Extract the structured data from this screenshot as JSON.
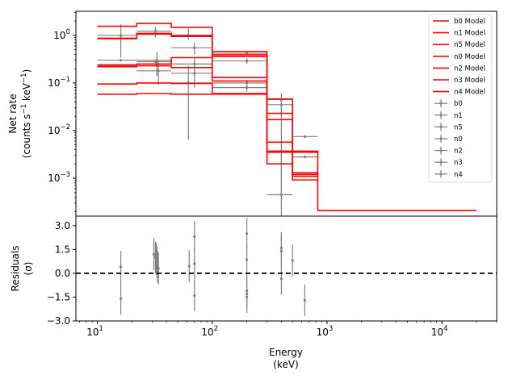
{
  "chart_data": [
    {
      "type": "step",
      "panel": "spectrum",
      "xscale": "log",
      "yscale": "log",
      "xlim": [
        6.5,
        30000
      ],
      "ylim": [
        0.00016,
        3.2
      ],
      "ylabel_line1": "Net rate",
      "ylabel_line2_pre": "(counts s",
      "ylabel_line2_exp1": "−1",
      "ylabel_line2_mid": " keV",
      "ylabel_line2_exp2": "−1",
      "ylabel_line2_post": ")",
      "y_ticks": [
        {
          "value": 1,
          "label_base": "10",
          "label_exp": "0"
        },
        {
          "value": 0.1,
          "label_base": "10",
          "label_exp": "−1"
        },
        {
          "value": 0.01,
          "label_base": "10",
          "label_exp": "−2"
        },
        {
          "value": 0.001,
          "label_base": "10",
          "label_exp": "−3"
        }
      ],
      "legend": {
        "placement": "upper-right",
        "model_entries": [
          "b0 Model",
          "n1 Model",
          "n5 Model",
          "n0 Model",
          "n2 Model",
          "n3 Model",
          "n4 Model"
        ],
        "data_entries": [
          "b0",
          "n1",
          "n5",
          "n0",
          "n2",
          "n3",
          "n4"
        ]
      },
      "model_color": "#ff0000",
      "data_color": "#808080",
      "model_lines": [
        {
          "name": "b0 Model",
          "bins": [
            [
              10,
              22,
              1.55
            ],
            [
              22,
              44,
              1.78
            ],
            [
              44,
              100,
              1.48
            ],
            [
              100,
              300,
              0.46
            ],
            [
              300,
              500,
              0.0037
            ],
            [
              500,
              830,
              0.0037
            ],
            [
              830,
              20000,
              0.00021
            ]
          ]
        },
        {
          "name": "n1 Model",
          "bins": [
            [
              10,
              22,
              0.87
            ],
            [
              22,
              44,
              1.1
            ],
            [
              44,
              100,
              0.99
            ],
            [
              100,
              300,
              0.39
            ],
            [
              300,
              500,
              0.046
            ],
            [
              500,
              830,
              0.0035
            ]
          ]
        },
        {
          "name": "n5 Model",
          "bins": [
            [
              10,
              22,
              0.85
            ],
            [
              22,
              44,
              1.06
            ],
            [
              44,
              100,
              0.95
            ],
            [
              100,
              300,
              0.36
            ],
            [
              300,
              500,
              0.023
            ],
            [
              500,
              830,
              0.0012
            ]
          ]
        },
        {
          "name": "n0 Model",
          "bins": [
            [
              10,
              22,
              0.24
            ],
            [
              22,
              44,
              0.25
            ],
            [
              44,
              100,
              0.34
            ],
            [
              100,
              300,
              0.13
            ],
            [
              300,
              500,
              0.017
            ],
            [
              500,
              830,
              0.0013
            ]
          ]
        },
        {
          "name": "n2 Model",
          "bins": [
            [
              10,
              22,
              0.22
            ],
            [
              22,
              44,
              0.23
            ],
            [
              44,
              100,
              0.21
            ],
            [
              100,
              300,
              0.11
            ],
            [
              300,
              500,
              0.0035
            ],
            [
              500,
              830,
              0.00092
            ]
          ]
        },
        {
          "name": "n3 Model",
          "bins": [
            [
              10,
              22,
              0.095
            ],
            [
              22,
              44,
              0.1
            ],
            [
              44,
              100,
              0.098
            ],
            [
              100,
              300,
              0.06
            ],
            [
              300,
              500,
              0.0057
            ],
            [
              500,
              830,
              0.0011
            ]
          ]
        },
        {
          "name": "n4 Model",
          "bins": [
            [
              10,
              22,
              0.058
            ],
            [
              22,
              44,
              0.06
            ],
            [
              44,
              100,
              0.058
            ],
            [
              100,
              300,
              0.058
            ],
            [
              300,
              500,
              0.002
            ]
          ]
        }
      ],
      "data_points": [
        {
          "x": 16,
          "xlo": 10,
          "xhi": 22,
          "y": 1.0,
          "ylo": 0.34,
          "yhi": 1.7
        },
        {
          "x": 16,
          "xlo": 10,
          "xhi": 22,
          "y": 0.3,
          "ylo": 0.3,
          "yhi": 0.3
        },
        {
          "x": 16,
          "xlo": 10,
          "xhi": 22,
          "y": 0.23,
          "ylo": 0.23,
          "yhi": 0.23
        },
        {
          "x": 32,
          "xlo": 22,
          "xhi": 44,
          "y": 1.22,
          "ylo": 0.9,
          "yhi": 1.5
        },
        {
          "x": 33,
          "xlo": 22,
          "xhi": 44,
          "y": 0.3,
          "ylo": 0.14,
          "yhi": 0.45
        },
        {
          "x": 33,
          "xlo": 22,
          "xhi": 44,
          "y": 0.25,
          "ylo": 0.14,
          "yhi": 0.35
        },
        {
          "x": 34,
          "xlo": 22,
          "xhi": 44,
          "y": 0.18,
          "ylo": 0.09,
          "yhi": 0.3
        },
        {
          "x": 32,
          "xlo": 22,
          "xhi": 44,
          "y": 0.28,
          "ylo": 0.28,
          "yhi": 0.28
        },
        {
          "x": 62,
          "xlo": 44,
          "xhi": 100,
          "y": 1.0,
          "ylo": 0.8,
          "yhi": 1.4
        },
        {
          "x": 70,
          "xlo": 44,
          "xhi": 100,
          "y": 0.55,
          "ylo": 0.4,
          "yhi": 0.7
        },
        {
          "x": 62,
          "xlo": 44,
          "xhi": 100,
          "y": 0.1,
          "ylo": 0.0065,
          "yhi": 0.23
        },
        {
          "x": 70,
          "xlo": 44,
          "xhi": 100,
          "y": 0.25,
          "ylo": 0.14,
          "yhi": 0.35
        },
        {
          "x": 70,
          "xlo": 44,
          "xhi": 100,
          "y": 0.16,
          "ylo": 0.08,
          "yhi": 0.22
        },
        {
          "x": 200,
          "xlo": 100,
          "xhi": 300,
          "y": 0.42,
          "ylo": 0.38,
          "yhi": 0.46
        },
        {
          "x": 200,
          "xlo": 100,
          "xhi": 300,
          "y": 0.29,
          "ylo": 0.25,
          "yhi": 0.33
        },
        {
          "x": 200,
          "xlo": 100,
          "xhi": 300,
          "y": 0.1,
          "ylo": 0.085,
          "yhi": 0.115
        },
        {
          "x": 200,
          "xlo": 100,
          "xhi": 300,
          "y": 0.08,
          "ylo": 0.065,
          "yhi": 0.09
        },
        {
          "x": 400,
          "xlo": 300,
          "xhi": 500,
          "y": 0.045,
          "ylo": 0.02,
          "yhi": 0.06
        },
        {
          "x": 400,
          "xlo": 300,
          "xhi": 500,
          "y": 0.035,
          "ylo": 0.00045,
          "yhi": 0.05
        },
        {
          "x": 400,
          "xlo": 300,
          "xhi": 500,
          "y": 0.00045,
          "ylo": 0.00016,
          "yhi": 0.004
        },
        {
          "x": 640,
          "xlo": 500,
          "xhi": 830,
          "y": 0.0075,
          "ylo": 0.0075,
          "yhi": 0.0075
        },
        {
          "x": 640,
          "xlo": 500,
          "xhi": 830,
          "y": 0.0028,
          "ylo": 0.0028,
          "yhi": 0.0028
        }
      ]
    },
    {
      "type": "scatter",
      "panel": "residuals",
      "xscale": "log",
      "xlim": [
        6.5,
        30000
      ],
      "ylim": [
        -3.0,
        3.6
      ],
      "xlabel_line1": "Energy",
      "xlabel_line2": "(keV)",
      "ylabel_line1": "Residuals",
      "ylabel_line2": "(σ)",
      "y_ticks": [
        {
          "value": 3.0,
          "label": "3.0"
        },
        {
          "value": 1.5,
          "label": "1.5"
        },
        {
          "value": 0.0,
          "label": "0.0"
        },
        {
          "value": -1.5,
          "label": "−1.5"
        },
        {
          "value": -3.0,
          "label": "−3.0"
        }
      ],
      "x_ticks": [
        {
          "value": 10,
          "label_base": "10",
          "label_exp": "1"
        },
        {
          "value": 100,
          "label_base": "10",
          "label_exp": "2"
        },
        {
          "value": 1000,
          "label_base": "10",
          "label_exp": "3"
        },
        {
          "value": 10000,
          "label_base": "10",
          "label_exp": "4"
        }
      ],
      "zero_line": {
        "y": 0,
        "style": "dashed"
      },
      "points": [
        {
          "x": 16,
          "y": 0.4,
          "err": 1.0
        },
        {
          "x": 16,
          "y": -1.6,
          "err": 1.0
        },
        {
          "x": 31,
          "y": 1.2,
          "err": 1.0
        },
        {
          "x": 32,
          "y": 1.0,
          "err": 1.0
        },
        {
          "x": 32.5,
          "y": 0.9,
          "err": 1.0
        },
        {
          "x": 33,
          "y": 0.7,
          "err": 1.0
        },
        {
          "x": 33.5,
          "y": 0.4,
          "err": 1.0
        },
        {
          "x": 34,
          "y": 0.3,
          "err": 1.0
        },
        {
          "x": 63,
          "y": 0.45,
          "err": 1.0
        },
        {
          "x": 70,
          "y": 2.3,
          "err": 1.0
        },
        {
          "x": 70,
          "y": 0.6,
          "err": 1.0
        },
        {
          "x": 70,
          "y": -1.4,
          "err": 1.0
        },
        {
          "x": 200,
          "y": 2.5,
          "err": 1.0
        },
        {
          "x": 200,
          "y": 0.85,
          "err": 1.0
        },
        {
          "x": 200,
          "y": -1.1,
          "err": 1.0
        },
        {
          "x": 200,
          "y": -1.3,
          "err": 1.0
        },
        {
          "x": 200,
          "y": -1.5,
          "err": 1.0
        },
        {
          "x": 400,
          "y": 1.6,
          "err": 1.0
        },
        {
          "x": 400,
          "y": 1.4,
          "err": 1.0
        },
        {
          "x": 400,
          "y": -0.35,
          "err": 1.0
        },
        {
          "x": 500,
          "y": 0.8,
          "err": 1.0
        },
        {
          "x": 640,
          "y": -1.7,
          "err": 1.0
        }
      ]
    }
  ]
}
